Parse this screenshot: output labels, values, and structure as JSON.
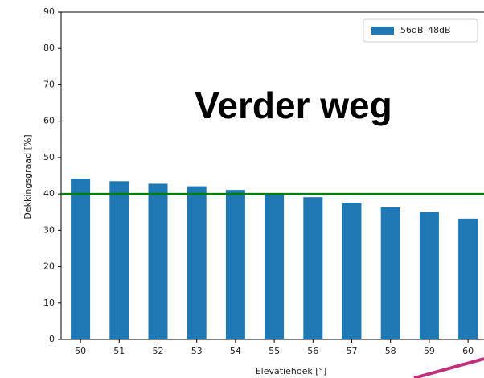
{
  "chart_data": {
    "type": "bar",
    "annotation": "Verder weg",
    "x_label": "Elevatiehoek [°]",
    "y_label": "Dekkingsgraad [%]",
    "categories": [
      "50",
      "51",
      "52",
      "53",
      "54",
      "55",
      "56",
      "57",
      "58",
      "59",
      "60"
    ],
    "series": [
      {
        "name": "56dB_48dB",
        "color": "#1f77b4",
        "values": [
          44.2,
          43.5,
          42.8,
          42.1,
          41.1,
          40.0,
          39.1,
          37.6,
          36.3,
          35.0,
          33.2
        ]
      }
    ],
    "reference_line": {
      "value": 40,
      "color": "#008000"
    },
    "ylim": [
      0,
      90
    ],
    "yticks": [
      0,
      10,
      20,
      30,
      40,
      50,
      60,
      70,
      80,
      90
    ],
    "legend": "upper right"
  }
}
